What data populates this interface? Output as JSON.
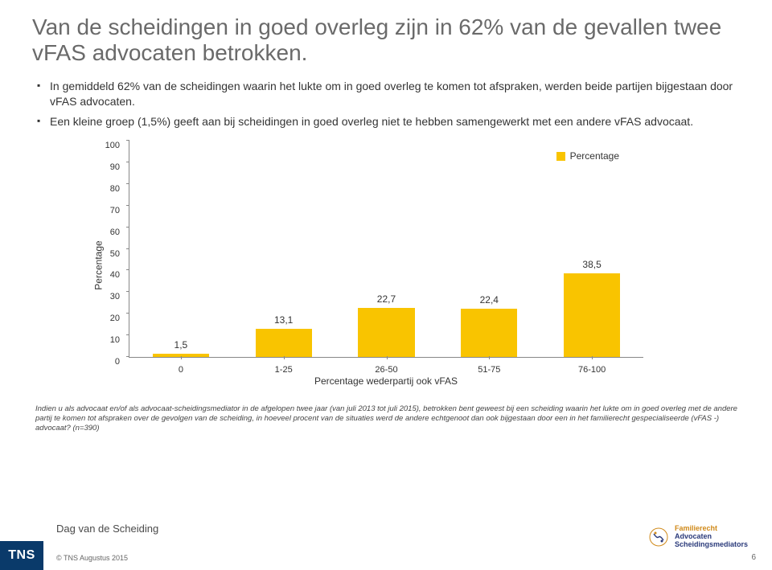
{
  "title": "Van de scheidingen in goed overleg zijn in 62% van de gevallen twee vFAS advocaten betrokken.",
  "bullets": [
    "In gemiddeld 62% van de scheidingen waarin het lukte om in goed overleg te komen tot afspraken, werden beide partijen bijgestaan door vFAS advocaten.",
    "Een kleine groep (1,5%) geeft aan bij scheidingen in goed overleg niet te hebben samengewerkt met een andere vFAS advocaat."
  ],
  "chart": {
    "type": "bar",
    "categories": [
      "0",
      "1-25",
      "26-50",
      "51-75",
      "76-100"
    ],
    "values": [
      1.5,
      13.1,
      22.7,
      22.4,
      38.5
    ],
    "value_labels": [
      "1,5",
      "13,1",
      "22,7",
      "22,4",
      "38,5"
    ],
    "bar_color": "#f9c400",
    "legend_label": "Percentage",
    "legend_swatch_color": "#f9c400",
    "ylabel": "Percentage",
    "xlabel": "Percentage wederpartij ook vFAS",
    "ylim": [
      0,
      100
    ],
    "ytick_step": 10,
    "bar_width": 0.55,
    "background_color": "#ffffff",
    "axis_color": "#888888",
    "title_fontsize": 28,
    "label_fontsize": 12,
    "tick_fontsize": 11
  },
  "footnote": "Indien u als advocaat en/of als advocaat-scheidingsmediator in de afgelopen twee jaar (van juli 2013 tot juli 2015), betrokken bent geweest bij een scheiding waarin het lukte om in goed overleg met de andere partij te komen tot afspraken over de gevolgen van de scheiding, in hoeveel procent van de situaties werd de andere echtgenoot dan ook bijgestaan door een in het familierecht gespecialiseerde (vFAS -) advocaat? (n=390)",
  "footer": {
    "slide_title": "Dag van de Scheiding",
    "tns_logo_text": "TNS",
    "copyright": "© TNS Augustus 2015",
    "page_number": "6",
    "right_logo": {
      "line1": "Familierecht",
      "line2": "Advocaten",
      "line3": "Scheidingsmediators"
    }
  },
  "colors": {
    "title_text": "#6a6a6a",
    "body_text": "#333333",
    "tns_block_bg": "#0a3a6a",
    "logo_orange": "#d08a1a",
    "logo_blue": "#2a3a7a"
  }
}
